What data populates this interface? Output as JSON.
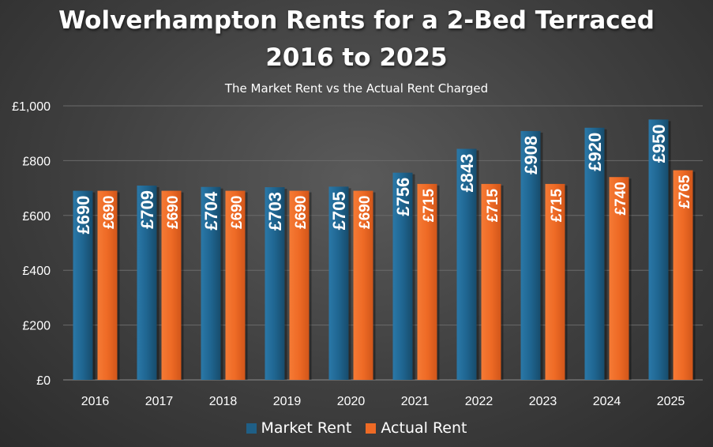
{
  "chart_data": {
    "type": "bar",
    "title_line1": "Wolverhampton Rents for a 2-Bed Terraced",
    "title_line2": "2016 to 2025",
    "subtitle": "The Market Rent vs the Actual Rent Charged",
    "categories": [
      "2016",
      "2017",
      "2018",
      "2019",
      "2020",
      "2021",
      "2022",
      "2023",
      "2024",
      "2025"
    ],
    "series": [
      {
        "name": "Market Rent",
        "color": "#1f5f86",
        "values": [
          690,
          709,
          704,
          703,
          705,
          756,
          843,
          908,
          920,
          950
        ],
        "labels": [
          "£690",
          "£709",
          "£704",
          "£703",
          "£705",
          "£756",
          "£843",
          "£908",
          "£920",
          "£950"
        ]
      },
      {
        "name": "Actual Rent",
        "color": "#ee6a25",
        "values": [
          690,
          690,
          690,
          690,
          690,
          715,
          715,
          715,
          740,
          765
        ],
        "labels": [
          "£690",
          "£690",
          "£690",
          "£690",
          "£690",
          "£715",
          "£715",
          "£715",
          "£740",
          "£765"
        ]
      }
    ],
    "y_ticks": [
      "£0",
      "£200",
      "£400",
      "£600",
      "£800",
      "£1,000"
    ],
    "y_tick_values": [
      0,
      200,
      400,
      600,
      800,
      1000
    ],
    "ylim": [
      0,
      1000
    ],
    "grid": true,
    "legend_position": "bottom"
  }
}
